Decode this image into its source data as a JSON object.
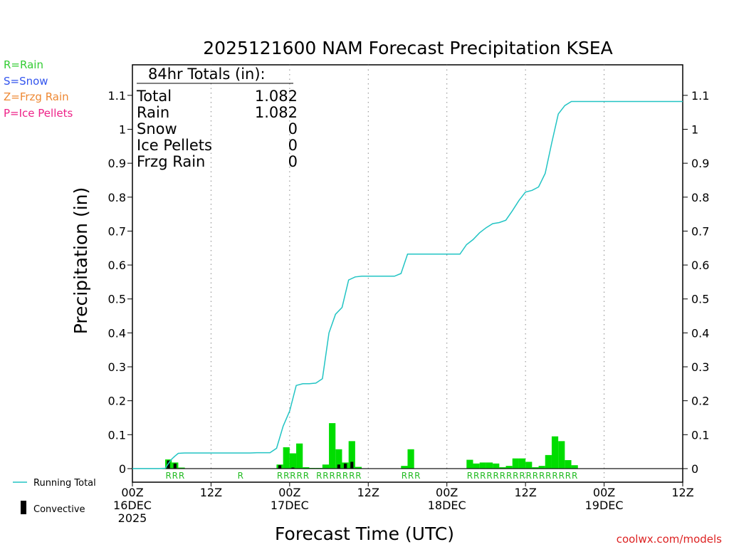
{
  "title": "2025121600 NAM Forecast Precipitation KSEA",
  "legend_types": [
    {
      "label": "R=Rain",
      "color": "#33cc33"
    },
    {
      "label": "S=Snow",
      "color": "#3355ee"
    },
    {
      "label": "Z=Frzg Rain",
      "color": "#ee8833"
    },
    {
      "label": "P=Ice Pellets",
      "color": "#ee2288"
    }
  ],
  "totals": {
    "heading": "84hr Totals (in):",
    "rows": [
      {
        "label": "Total",
        "value": "1.082"
      },
      {
        "label": "Rain",
        "value": "1.082"
      },
      {
        "label": "Snow",
        "value": "0"
      },
      {
        "label": "Ice Pellets",
        "value": "0"
      },
      {
        "label": "Frzg Rain",
        "value": "0"
      }
    ]
  },
  "bottom_legend": {
    "running_total": "Running Total",
    "convective": "Convective",
    "running_total_color": "#22c4c4",
    "convective_color": "#000000"
  },
  "footer": "coolwx.com/models",
  "colors": {
    "bar": "#00dd00",
    "convective": "#000000",
    "line": "#22c4c4",
    "ptype_text": "#22bb22",
    "footer": "#dd2222"
  },
  "chart_data": {
    "type": "bar",
    "title": "2025121600 NAM Forecast Precipitation KSEA",
    "xlabel": "Forecast Time (UTC)",
    "ylabel": "Precipitation (in)",
    "xlim": [
      0,
      84
    ],
    "ylim": [
      -0.04,
      1.19
    ],
    "yticks": [
      0,
      0.1,
      0.2,
      0.3,
      0.4,
      0.5,
      0.6,
      0.7,
      0.8,
      0.9,
      1,
      1.1
    ],
    "yticklabels": [
      "0",
      "0.1",
      "0.2",
      "0.3",
      "0.4",
      "0.5",
      "0.6",
      "0.7",
      "0.8",
      "0.9",
      "1",
      "1.1"
    ],
    "xticks": [
      {
        "hour": 0,
        "lines": [
          "00Z",
          "16DEC",
          "2025"
        ]
      },
      {
        "hour": 12,
        "lines": [
          "12Z"
        ]
      },
      {
        "hour": 24,
        "lines": [
          "00Z",
          "17DEC"
        ]
      },
      {
        "hour": 36,
        "lines": [
          "12Z"
        ]
      },
      {
        "hour": 48,
        "lines": [
          "00Z",
          "18DEC"
        ]
      },
      {
        "hour": 60,
        "lines": [
          "12Z"
        ]
      },
      {
        "hour": 72,
        "lines": [
          "00Z",
          "19DEC"
        ]
      },
      {
        "hour": 84,
        "lines": [
          "12Z"
        ]
      }
    ],
    "bar_width_hours": 1,
    "series": [
      {
        "name": "Hourly Precipitation",
        "points": [
          {
            "hour": 5.5,
            "value": 0.027
          },
          {
            "hour": 6.5,
            "value": 0.018
          },
          {
            "hour": 7.5,
            "value": 0.003
          },
          {
            "hour": 22.5,
            "value": 0.012
          },
          {
            "hour": 23.5,
            "value": 0.063
          },
          {
            "hour": 24.5,
            "value": 0.045
          },
          {
            "hour": 25.5,
            "value": 0.074
          },
          {
            "hour": 26.5,
            "value": 0.004
          },
          {
            "hour": 27.5,
            "value": 0.002
          },
          {
            "hour": 28.5,
            "value": 0.002
          },
          {
            "hour": 29.5,
            "value": 0.012
          },
          {
            "hour": 30.5,
            "value": 0.134
          },
          {
            "hour": 31.5,
            "value": 0.057
          },
          {
            "hour": 32.5,
            "value": 0.018
          },
          {
            "hour": 33.5,
            "value": 0.081
          },
          {
            "hour": 34.5,
            "value": 0.005
          },
          {
            "hour": 41.5,
            "value": 0.008
          },
          {
            "hour": 42.5,
            "value": 0.057
          },
          {
            "hour": 51.5,
            "value": 0.026
          },
          {
            "hour": 52.5,
            "value": 0.015
          },
          {
            "hour": 53.5,
            "value": 0.018
          },
          {
            "hour": 54.5,
            "value": 0.018
          },
          {
            "hour": 55.5,
            "value": 0.015
          },
          {
            "hour": 56.5,
            "value": 0.004
          },
          {
            "hour": 57.5,
            "value": 0.008
          },
          {
            "hour": 58.5,
            "value": 0.03
          },
          {
            "hour": 59.5,
            "value": 0.03
          },
          {
            "hour": 60.5,
            "value": 0.02
          },
          {
            "hour": 61.5,
            "value": 0.004
          },
          {
            "hour": 62.5,
            "value": 0.008
          },
          {
            "hour": 63.5,
            "value": 0.04
          },
          {
            "hour": 64.5,
            "value": 0.095
          },
          {
            "hour": 65.5,
            "value": 0.081
          },
          {
            "hour": 66.5,
            "value": 0.025
          },
          {
            "hour": 67.5,
            "value": 0.01
          }
        ]
      },
      {
        "name": "Convective",
        "points": [
          {
            "hour": 5.5,
            "value": 0.024
          },
          {
            "hour": 6.5,
            "value": 0.015
          },
          {
            "hour": 22.5,
            "value": 0.01
          },
          {
            "hour": 24.5,
            "value": 0.003
          },
          {
            "hour": 31.5,
            "value": 0.012
          },
          {
            "hour": 32.5,
            "value": 0.015
          },
          {
            "hour": 33.5,
            "value": 0.02
          }
        ]
      },
      {
        "name": "Running Total",
        "x": [
          0,
          1,
          2,
          3,
          4,
          5,
          5.5,
          6,
          6.5,
          7,
          8,
          9,
          10,
          11,
          12,
          13,
          14,
          15,
          16,
          17,
          18,
          19,
          20,
          21,
          22,
          23,
          24,
          25,
          26,
          27,
          28,
          29,
          30,
          31,
          32,
          33,
          34,
          35,
          36,
          37,
          38,
          39,
          40,
          41,
          42,
          43,
          44,
          45,
          46,
          47,
          48,
          49,
          50,
          51,
          52,
          53,
          54,
          55,
          56,
          57,
          58,
          59,
          60,
          61,
          62,
          63,
          64,
          65,
          66,
          67,
          68,
          69,
          70,
          71,
          72,
          73,
          74,
          75,
          76,
          77,
          78,
          79,
          80,
          81,
          82,
          83,
          84
        ],
        "values": [
          0,
          0,
          0,
          0,
          0,
          0.001,
          0.015,
          0.028,
          0.037,
          0.045,
          0.046,
          0.046,
          0.046,
          0.046,
          0.046,
          0.046,
          0.046,
          0.046,
          0.046,
          0.046,
          0.046,
          0.047,
          0.047,
          0.047,
          0.06,
          0.125,
          0.17,
          0.245,
          0.25,
          0.25,
          0.252,
          0.265,
          0.4,
          0.455,
          0.475,
          0.556,
          0.565,
          0.567,
          0.567,
          0.567,
          0.567,
          0.567,
          0.567,
          0.575,
          0.632,
          0.632,
          0.632,
          0.632,
          0.632,
          0.632,
          0.632,
          0.632,
          0.632,
          0.66,
          0.675,
          0.695,
          0.71,
          0.722,
          0.725,
          0.732,
          0.76,
          0.79,
          0.815,
          0.82,
          0.83,
          0.87,
          0.96,
          1.045,
          1.07,
          1.082,
          1.082,
          1.082,
          1.082,
          1.082,
          1.082,
          1.082,
          1.082,
          1.082,
          1.082,
          1.082,
          1.082,
          1.082,
          1.082,
          1.082,
          1.082,
          1.082,
          1.082
        ]
      }
    ],
    "ptype_labels": [
      {
        "hour": 5.5,
        "text": "R"
      },
      {
        "hour": 6.5,
        "text": "R"
      },
      {
        "hour": 7.5,
        "text": "R"
      },
      {
        "hour": 16.5,
        "text": "R"
      },
      {
        "hour": 22.5,
        "text": "R"
      },
      {
        "hour": 23.5,
        "text": "R"
      },
      {
        "hour": 24.5,
        "text": "R"
      },
      {
        "hour": 25.5,
        "text": "R"
      },
      {
        "hour": 26.5,
        "text": "R"
      },
      {
        "hour": 28.5,
        "text": "R"
      },
      {
        "hour": 29.5,
        "text": "R"
      },
      {
        "hour": 30.5,
        "text": "R"
      },
      {
        "hour": 31.5,
        "text": "R"
      },
      {
        "hour": 32.5,
        "text": "R"
      },
      {
        "hour": 33.5,
        "text": "R"
      },
      {
        "hour": 34.5,
        "text": "R"
      },
      {
        "hour": 41.5,
        "text": "R"
      },
      {
        "hour": 42.5,
        "text": "R"
      },
      {
        "hour": 43.5,
        "text": "R"
      },
      {
        "hour": 51.5,
        "text": "R"
      },
      {
        "hour": 52.5,
        "text": "R"
      },
      {
        "hour": 53.5,
        "text": "R"
      },
      {
        "hour": 54.5,
        "text": "R"
      },
      {
        "hour": 55.5,
        "text": "R"
      },
      {
        "hour": 56.5,
        "text": "R"
      },
      {
        "hour": 57.5,
        "text": "R"
      },
      {
        "hour": 58.5,
        "text": "R"
      },
      {
        "hour": 59.5,
        "text": "R"
      },
      {
        "hour": 60.5,
        "text": "R"
      },
      {
        "hour": 61.5,
        "text": "R"
      },
      {
        "hour": 62.5,
        "text": "R"
      },
      {
        "hour": 63.5,
        "text": "R"
      },
      {
        "hour": 64.5,
        "text": "R"
      },
      {
        "hour": 65.5,
        "text": "R"
      },
      {
        "hour": 66.5,
        "text": "R"
      },
      {
        "hour": 67.5,
        "text": "R"
      }
    ],
    "grid": "vertical dotted every 12h"
  }
}
